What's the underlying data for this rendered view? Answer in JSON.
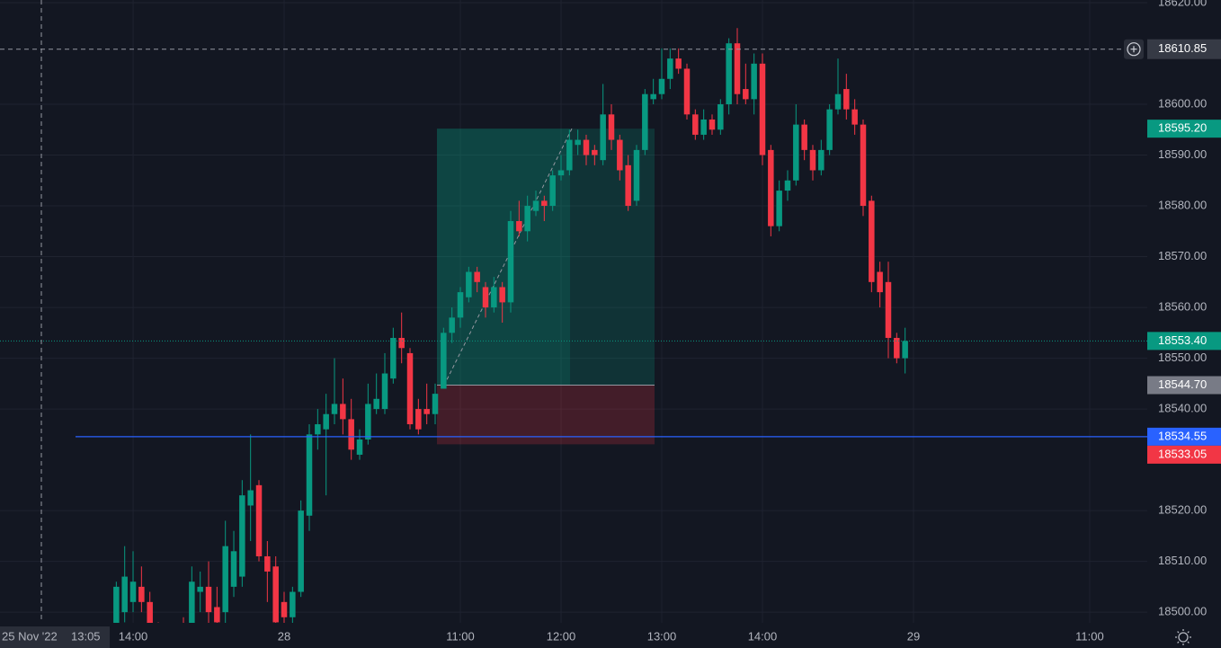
{
  "chart_data": {
    "type": "candlestick",
    "x": [
      -2,
      -1,
      0,
      1,
      2,
      3,
      4,
      5,
      6,
      7,
      8,
      9,
      10,
      11,
      12,
      13,
      14,
      15,
      16,
      17,
      18,
      19,
      20,
      21,
      22,
      23,
      24,
      25,
      26,
      27,
      28,
      29,
      30,
      31,
      32,
      33,
      34,
      35,
      36,
      37,
      38,
      39,
      40,
      41,
      42,
      43,
      44,
      45,
      46,
      47,
      48,
      49,
      50,
      51,
      52,
      53,
      54,
      55,
      56,
      57,
      58,
      59,
      60,
      61,
      62,
      63,
      64,
      65,
      66,
      67,
      68,
      69,
      70,
      71,
      72,
      73,
      74,
      75,
      76,
      77,
      78,
      79,
      80,
      81,
      82,
      83,
      84,
      85,
      86,
      87,
      88,
      89,
      90,
      91,
      92
    ],
    "open": [
      18496,
      18500,
      18502,
      18505,
      18502,
      18497,
      18494,
      18492,
      18495,
      18497,
      18504,
      18505,
      18501,
      18500,
      18505,
      18507,
      18521,
      18525,
      18511,
      18509,
      18502,
      18499,
      18504,
      18519,
      18535,
      18536,
      18539,
      18541,
      18538,
      18531,
      18534,
      18540,
      18540,
      18546,
      18554,
      18551,
      18540,
      18540,
      18539,
      18544,
      18555,
      18558,
      18562,
      18567,
      18564,
      18560,
      18564,
      18561,
      18577,
      18575,
      18579,
      18581,
      18580,
      18586,
      18587,
      18592,
      18593,
      18591,
      18589,
      18598,
      18593,
      18588,
      18581,
      18591,
      18601,
      18602,
      18605,
      18609,
      18607,
      18598,
      18594,
      18597,
      18595,
      18600,
      18612,
      18603,
      18601,
      18608,
      18591,
      18576,
      18583,
      18585,
      18596,
      18591,
      18587,
      18591,
      18599,
      18603,
      18599,
      18596,
      18581,
      18567,
      18565,
      18554,
      18550
    ],
    "high": [
      18506,
      18513,
      18512,
      18509,
      18504,
      18498,
      18496,
      18497,
      18499,
      18509,
      18508,
      18510,
      18505,
      18518,
      18516,
      18526,
      18535,
      18526,
      18514,
      18511,
      18504,
      18505,
      18522,
      18537,
      18540,
      18543,
      18550,
      18546,
      18542,
      18536,
      18545,
      18547,
      18551,
      18556,
      18559,
      18552,
      18542,
      18545,
      18545,
      18556,
      18560,
      18564,
      18568,
      18568,
      18565,
      18566,
      18565,
      18579,
      18581,
      18582,
      18583,
      18582,
      18587,
      18590,
      18595,
      18595,
      18594,
      18592,
      18604,
      18600,
      18594,
      18590,
      18592,
      18603,
      18605,
      18611,
      18611,
      18611,
      18608,
      18599,
      18599,
      18598,
      18601,
      18613,
      18615,
      18608,
      18610,
      18610,
      18592,
      18585,
      18587,
      18600,
      18597,
      18592,
      18593,
      18600,
      18609,
      18606,
      18601,
      18597,
      18582,
      18569,
      18569,
      18555,
      18556
    ],
    "low": [
      18494,
      18498,
      18500,
      18500,
      18494,
      18490,
      18488,
      18489,
      18490,
      18496,
      18500,
      18497,
      18495,
      18496,
      18503,
      18505,
      18514,
      18510,
      18502,
      18496,
      18497,
      18497,
      18503,
      18516,
      18532,
      18523,
      18537,
      18535,
      18530,
      18530,
      18533,
      18539,
      18539,
      18545,
      18549,
      18536,
      18535,
      18537,
      18537,
      18544,
      18553,
      18556,
      18561,
      18563,
      18558,
      18559,
      18557,
      18559,
      18574,
      18573,
      18578,
      18577,
      18579,
      18585,
      18586,
      18590,
      18588,
      18588,
      18588,
      18591,
      18585,
      18579,
      18580,
      18590,
      18600,
      18601,
      18603,
      18606,
      18597,
      18593,
      18593,
      18594,
      18594,
      18598,
      18600,
      18600,
      18598,
      18588,
      18574,
      18575,
      18581,
      18584,
      18589,
      18585,
      18586,
      18590,
      18598,
      18597,
      18594,
      18578,
      18563,
      18560,
      18550,
      18549,
      18547
    ],
    "close": [
      18505,
      18507,
      18506,
      18502,
      18497,
      18494,
      18492,
      18495,
      18493,
      18506,
      18505,
      18500,
      18498,
      18513,
      18512,
      18523,
      18524,
      18511,
      18508,
      18498,
      18499,
      18504,
      18520,
      18535,
      18537,
      18539,
      18541,
      18538,
      18532,
      18534,
      18541,
      18542,
      18547,
      18554,
      18552,
      18537,
      18536,
      18539,
      18543,
      18555,
      18558,
      18563,
      18567,
      18565,
      18560,
      18564,
      18561,
      18577,
      18575,
      18580,
      18581,
      18580,
      18586,
      18587,
      18593,
      18593,
      18590,
      18590,
      18598,
      18593,
      18587,
      18580,
      18591,
      18602,
      18602,
      18605,
      18609,
      18607,
      18598,
      18594,
      18597,
      18595,
      18600,
      18612,
      18602,
      18601,
      18608,
      18590,
      18576,
      18583,
      18585,
      18596,
      18591,
      18587,
      18591,
      18599,
      18602,
      18599,
      18596,
      18580,
      18565,
      18563,
      18554,
      18550,
      18553.4
    ],
    "colors": {
      "up": "#089981",
      "down": "#f23645"
    },
    "xlim": [
      -15.86,
      120.86
    ],
    "xticks": [
      {
        "value": 0,
        "label": "14:00"
      },
      {
        "value": 18,
        "label": "28"
      },
      {
        "value": 39,
        "label": "11:00"
      },
      {
        "value": 51,
        "label": "12:00"
      },
      {
        "value": 63,
        "label": "13:00"
      },
      {
        "value": 75,
        "label": "14:00"
      },
      {
        "value": 93,
        "label": "29"
      },
      {
        "value": 114,
        "label": "11:00"
      }
    ],
    "ylim": [
      18497.9,
      18620.53
    ],
    "yticks": [
      {
        "value": 18620,
        "label": "18620.00"
      },
      {
        "value": 18600,
        "label": "18600.00"
      },
      {
        "value": 18590,
        "label": "18590.00"
      },
      {
        "value": 18580,
        "label": "18580.00"
      },
      {
        "value": 18570,
        "label": "18570.00"
      },
      {
        "value": 18560,
        "label": "18560.00"
      },
      {
        "value": 18550,
        "label": "18550.00"
      },
      {
        "value": 18540,
        "label": "18540.00"
      },
      {
        "value": 18520,
        "label": "18520.00"
      },
      {
        "value": 18510,
        "label": "18510.00"
      },
      {
        "value": 18500,
        "label": "18500.00"
      }
    ],
    "grid": true,
    "crosshair": {
      "price": {
        "value": 18610.85,
        "label": "18610.85"
      },
      "date": "25 Nov '22",
      "time": "13:05"
    },
    "position": {
      "target": {
        "value": 18595.2,
        "label": "18595.20"
      },
      "entry": {
        "value": 18544.7,
        "label": "18544.70"
      },
      "stop": {
        "value": 18533.05,
        "label": "18533.05"
      }
    },
    "last_price": {
      "value": 18553.4,
      "label": "18553.40",
      "color": "#089981"
    },
    "hline": {
      "value": 18534.55,
      "label": "18534.55",
      "color": "#2962ff"
    }
  }
}
